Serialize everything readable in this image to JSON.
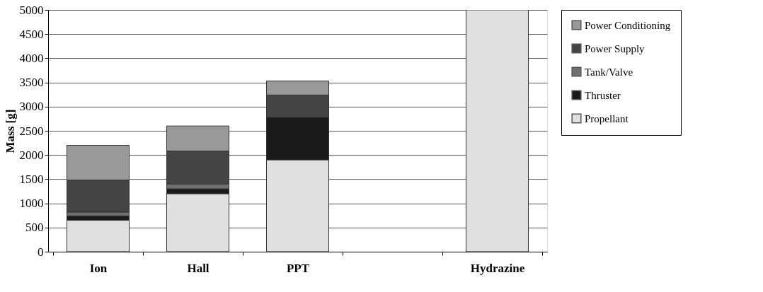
{
  "chart_data": {
    "type": "bar",
    "stacked": true,
    "ylabel": "Mass [g]",
    "categories": [
      "Ion",
      "Hall",
      "PPT",
      null,
      "Hydrazine"
    ],
    "series": [
      {
        "name": "Propellant",
        "color": "#e0e0e0",
        "values": [
          650,
          1200,
          1900,
          null,
          5000
        ]
      },
      {
        "name": "Thruster",
        "color": "#1a1a1a",
        "values": [
          90,
          100,
          880,
          null,
          null
        ]
      },
      {
        "name": "Tank/Valve",
        "color": "#707070",
        "values": [
          80,
          100,
          null,
          null,
          null
        ]
      },
      {
        "name": "Power Supply",
        "color": "#444444",
        "values": [
          660,
          680,
          460,
          null,
          null
        ]
      },
      {
        "name": "Power Conditioning",
        "color": "#999999",
        "values": [
          720,
          520,
          290,
          null,
          null
        ]
      }
    ],
    "ylim": [
      0,
      5000
    ],
    "yticks": [
      0,
      500,
      1000,
      1500,
      2000,
      2500,
      3000,
      3500,
      4000,
      4500,
      5000
    ],
    "grid": "y",
    "legend": "right"
  }
}
